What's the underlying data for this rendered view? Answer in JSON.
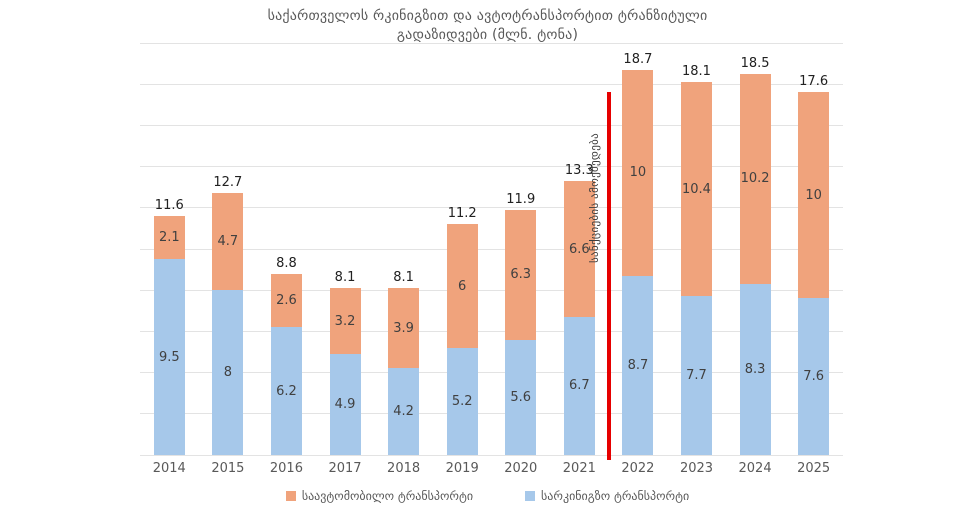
{
  "title": {
    "line1": "საქართველოს რკინიგზით და ავტოტრანსპორტით ტრანზიტული",
    "line2": "გადაზიდვები (მლნ. ტონა)"
  },
  "chart_data": {
    "type": "bar",
    "stacked": true,
    "title": "საქართველოს რკინიგზით და ავტოტრანსპორტით ტრანზიტული გადაზიდვები (მლნ. ტონა)",
    "categories": [
      "2014",
      "2015",
      "2016",
      "2017",
      "2018",
      "2019",
      "2020",
      "2021",
      "2022",
      "2023",
      "2024",
      "2025"
    ],
    "series": [
      {
        "name": "სარკინიგზო ტრანსპორტი",
        "color": "#a6c8ea",
        "values": [
          9.5,
          8,
          6.2,
          4.9,
          4.2,
          5.2,
          5.6,
          6.7,
          8.7,
          7.7,
          8.3,
          7.6
        ]
      },
      {
        "name": "საავტომობილო ტრანსპორტი",
        "color": "#f0a37c",
        "values": [
          2.1,
          4.7,
          2.6,
          3.2,
          3.9,
          6,
          6.3,
          6.6,
          10,
          10.4,
          10.2,
          10
        ]
      }
    ],
    "totals": [
      11.6,
      12.7,
      8.8,
      8.1,
      8.1,
      11.2,
      11.9,
      13.3,
      18.7,
      18.1,
      18.5,
      17.6
    ],
    "xlabel": "",
    "ylabel": "",
    "ylim": [
      0,
      20
    ],
    "grid_step": 2,
    "grid": true,
    "legend_position": "bottom",
    "annotation": {
      "text": "სანქციების ამოქმედება",
      "position_between": [
        "2021",
        "2022"
      ],
      "line_color": "#e60000"
    }
  },
  "legend": {
    "items": [
      {
        "label": "საავტომობილო ტრანსპორტი",
        "color": "#f0a37c"
      },
      {
        "label": "სარკინიგზო ტრანსპორტი",
        "color": "#a6c8ea"
      }
    ]
  }
}
